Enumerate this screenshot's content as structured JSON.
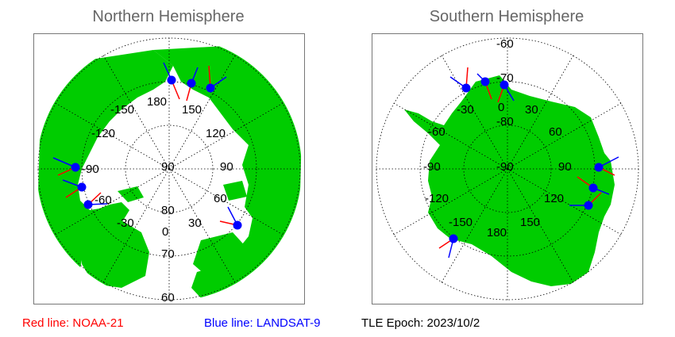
{
  "titles": {
    "north": "Northern Hemisphere",
    "south": "Southern Hemisphere"
  },
  "north": {
    "lon_labels": [
      "180",
      "-150",
      "150",
      "-120",
      "120",
      "-90",
      "90",
      "-60",
      "60",
      "-30",
      "30",
      "0"
    ],
    "lat_labels": [
      "90",
      "80",
      "70",
      "60"
    ]
  },
  "south": {
    "lon_labels": [
      "0",
      "-30",
      "30",
      "-60",
      "60",
      "-90",
      "90",
      "-120",
      "120",
      "-150",
      "150",
      "180"
    ],
    "lat_labels": [
      "-60",
      "-70",
      "-80",
      "-90"
    ]
  },
  "footer": {
    "red_label": "Red line: NOAA-21",
    "blue_label": "Blue line: LANDSAT-9",
    "tle_epoch": "TLE Epoch: 2023/10/2"
  },
  "colors": {
    "land": "#00cc00",
    "red_line": "#ff0000",
    "blue_line": "#0000ff",
    "title": "#666666"
  }
}
